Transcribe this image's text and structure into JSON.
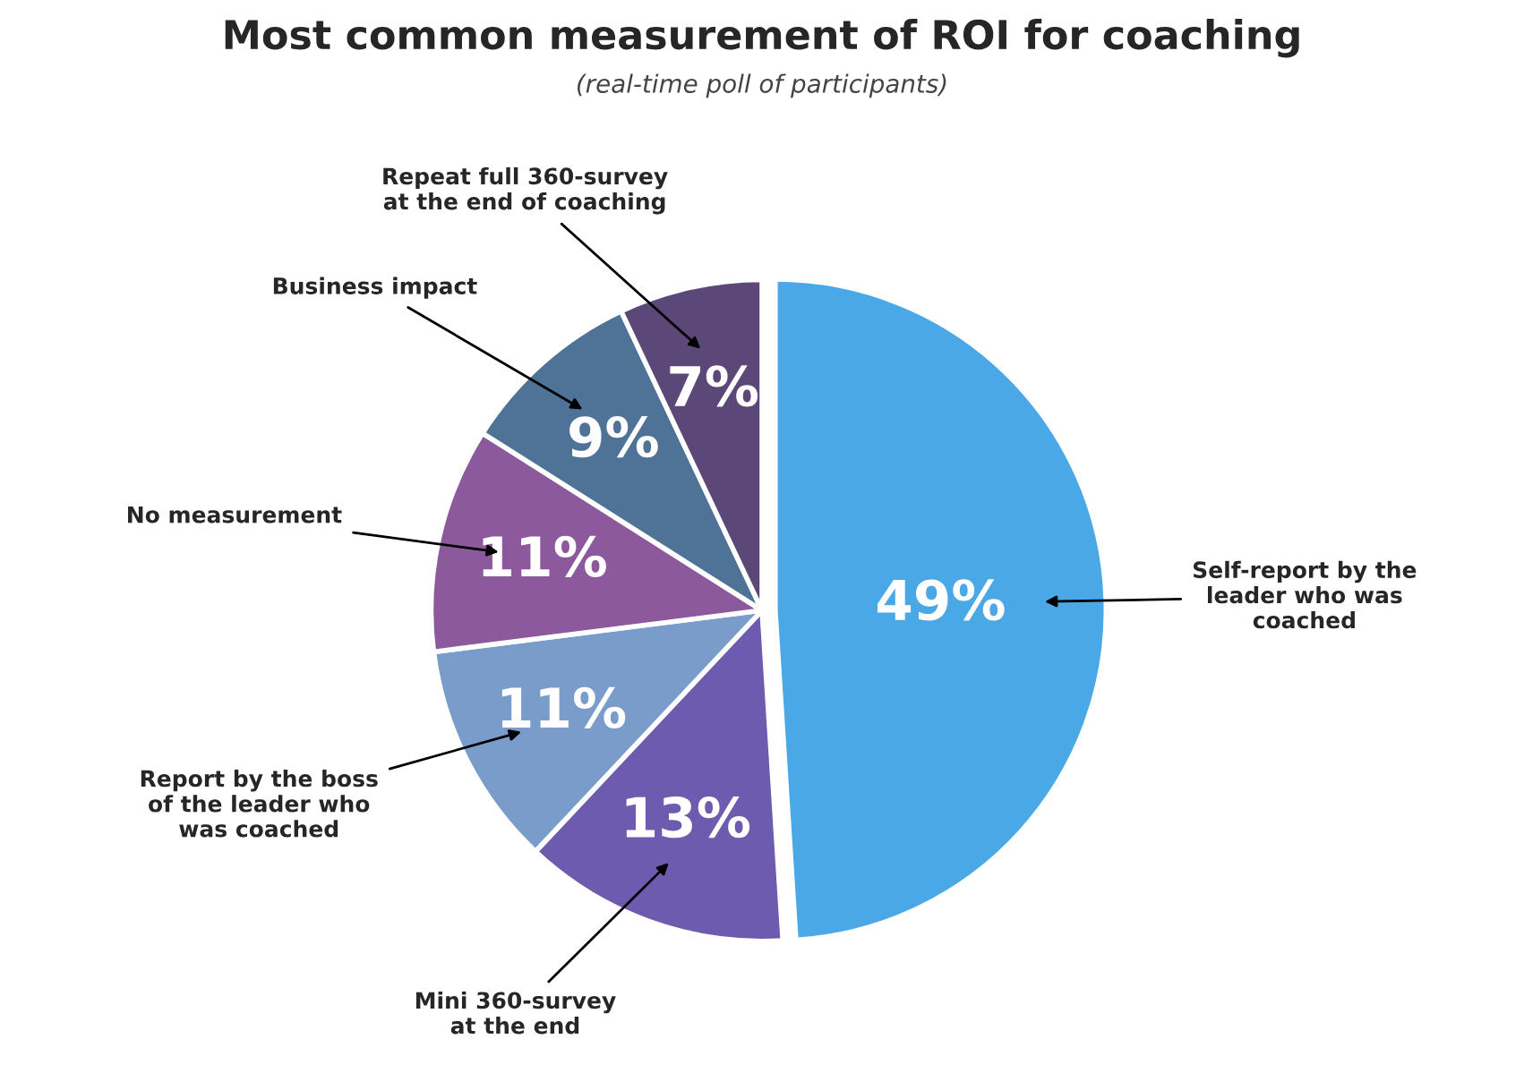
{
  "chart_data": {
    "type": "pie",
    "title": "Most common measurement of ROI for coaching",
    "subtitle": "(real-time poll of participants)",
    "categories": [
      "Self-report by the\nleader who was\ncoached",
      "Mini 360-survey\nat the end",
      "Report by the boss\nof the leader who\nwas coached",
      "No measurement",
      "Business impact",
      "Repeat full 360-survey\nat the end of coaching"
    ],
    "values": [
      49,
      13,
      11,
      11,
      9,
      7
    ],
    "colors": [
      "#4ba8e6",
      "#6c5bae",
      "#7a9ccb",
      "#8c5a9c",
      "#4f7397",
      "#5b4878"
    ],
    "value_labels": [
      "49%",
      "13%",
      "11%",
      "11%",
      "9%",
      "7%"
    ]
  }
}
